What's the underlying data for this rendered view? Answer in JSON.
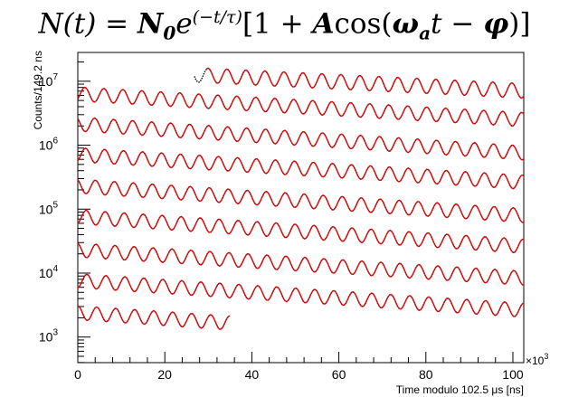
{
  "formula": {
    "lhs": "N(t)",
    "n0": "N",
    "n0_sub": "0",
    "e": "e",
    "exp": "(−t/τ)",
    "bracket_open": "[1 + ",
    "a": "A",
    "cos": "cos(",
    "omega": "ω",
    "omega_sub": "a",
    "t": "t",
    "minus": " − ",
    "phi": "φ",
    "close": ")]"
  },
  "chart_data": {
    "type": "line",
    "title": "N(t) = N0 e^(−t/τ)[1 + A cos(ωa t − φ)]",
    "xlabel": "Time modulo 102.5 μs [ns]",
    "ylabel": "Counts/149.2 ns",
    "x_multiplier_label": "×10",
    "x_multiplier_exp": "3",
    "xlim": [
      0,
      102.5
    ],
    "ylim_log10": [
      2.6,
      7.45
    ],
    "y_scale": "log",
    "x_ticks": [
      "0",
      "20",
      "40",
      "60",
      "80",
      "100"
    ],
    "x_tick_values": [
      0,
      20,
      40,
      60,
      80,
      100
    ],
    "y_ticks": [
      {
        "base": "10",
        "exp": "3",
        "log": 3
      },
      {
        "base": "10",
        "exp": "4",
        "log": 4
      },
      {
        "base": "10",
        "exp": "5",
        "log": 5
      },
      {
        "base": "10",
        "exp": "6",
        "log": 6
      },
      {
        "base": "10",
        "exp": "7",
        "log": 7
      }
    ],
    "data_color": "#000000",
    "fit_color": "#e00000",
    "oscillation_period_us": 4.365,
    "wrap_period_us": 102.5,
    "series": [
      {
        "x_start": 26.8,
        "x_end": 102.5,
        "log_start": 7.1,
        "log_end": 6.85,
        "amp_log": 0.115,
        "fit_start": 29.5
      },
      {
        "x_start": 0,
        "x_end": 102.5,
        "log_start": 6.8,
        "log_end": 6.4,
        "amp_log": 0.11,
        "fit_start": 0
      },
      {
        "x_start": 0,
        "x_end": 102.5,
        "log_start": 6.33,
        "log_end": 5.88,
        "amp_log": 0.11,
        "fit_start": 0
      },
      {
        "x_start": 0,
        "x_end": 102.5,
        "log_start": 5.85,
        "log_end": 5.42,
        "amp_log": 0.11,
        "fit_start": 0
      },
      {
        "x_start": 0,
        "x_end": 102.5,
        "log_start": 5.36,
        "log_end": 4.9,
        "amp_log": 0.11,
        "fit_start": 0
      },
      {
        "x_start": 0,
        "x_end": 102.5,
        "log_start": 4.88,
        "log_end": 4.42,
        "amp_log": 0.11,
        "fit_start": 0
      },
      {
        "x_start": 0,
        "x_end": 102.5,
        "log_start": 4.36,
        "log_end": 3.92,
        "amp_log": 0.11,
        "fit_start": 0
      },
      {
        "x_start": 0,
        "x_end": 102.5,
        "log_start": 3.88,
        "log_end": 3.42,
        "amp_log": 0.11,
        "fit_start": 0
      },
      {
        "x_start": 0,
        "x_end": 35.0,
        "log_start": 3.38,
        "log_end": 3.22,
        "amp_log": 0.11,
        "fit_start": 0
      }
    ]
  }
}
